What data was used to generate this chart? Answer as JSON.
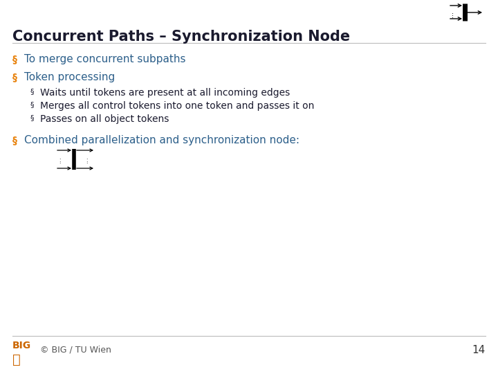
{
  "title": "Concurrent Paths – Synchronization Node",
  "title_color": "#1a1a2e",
  "bullet_color": "#E8820C",
  "text_color": "#2c5f8a",
  "sub_text_color": "#1a1a2e",
  "background_color": "#FFFFFF",
  "footer_text": "© BIG / TU Wien",
  "page_number": "14",
  "bullet1": "To merge concurrent subpaths",
  "bullet2": "Token processing",
  "sub_bullets": [
    "Waits until tokens are present at all incoming edges",
    "Merges all control tokens into one token and passes it on",
    "Passes on all object tokens"
  ],
  "bullet3": "Combined parallelization and synchronization node:"
}
